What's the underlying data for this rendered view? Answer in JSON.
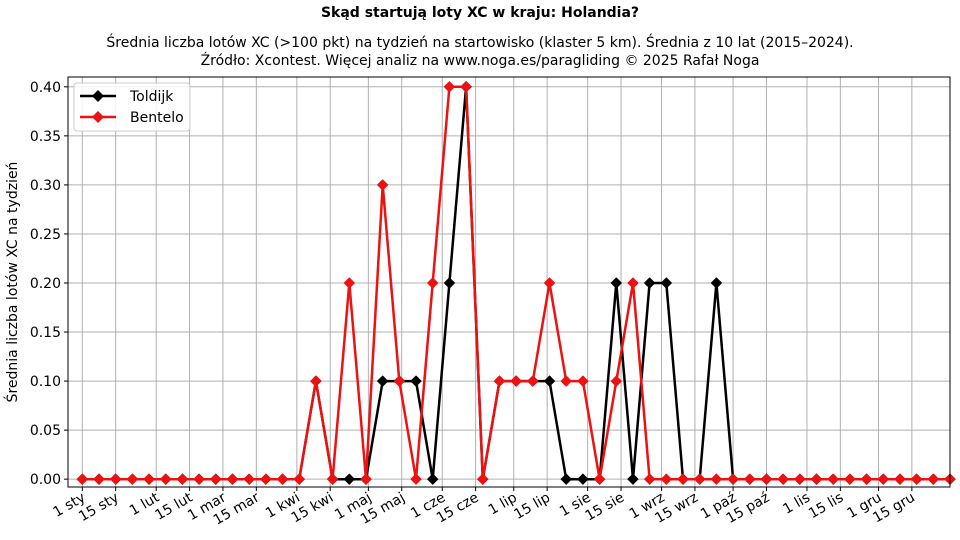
{
  "chart_data": {
    "type": "line",
    "title": "Skąd startują loty XC w kraju: Holandia?",
    "subtitle_lines": [
      "Średnia liczba lotów XC (>100 pkt) na tydzień na startowisko (klaster 5 km). Średnia z 10 lat (2015–2024).",
      "Źródło: Xcontest. Więcej analiz na www.noga.es/paragliding © 2025 Rafał Noga"
    ],
    "ylabel": "Średnia liczba lotów XC na tydzień",
    "xlabel": "",
    "ylim": [
      -0.008,
      0.41
    ],
    "yticks": [
      0.0,
      0.05,
      0.1,
      0.15,
      0.2,
      0.25,
      0.3,
      0.35,
      0.4
    ],
    "ytick_labels": [
      "0.00",
      "0.05",
      "0.10",
      "0.15",
      "0.20",
      "0.25",
      "0.30",
      "0.35",
      "0.40"
    ],
    "xtick_labels": [
      "1 sty",
      "15 sty",
      "1 lut",
      "15 lut",
      "1 mar",
      "15 mar",
      "1 kwi",
      "15 kwi",
      "1 maj",
      "15 maj",
      "1 cze",
      "15 cze",
      "1 lip",
      "15 lip",
      "1 sie",
      "15 sie",
      "1 wrz",
      "15 wrz",
      "1 paź",
      "15 paź",
      "1 lis",
      "15 lis",
      "1 gru",
      "15 gru"
    ],
    "xtick_days": [
      1,
      15,
      32,
      46,
      60,
      74,
      91,
      105,
      121,
      135,
      152,
      166,
      182,
      196,
      213,
      227,
      244,
      258,
      274,
      288,
      305,
      319,
      335,
      349
    ],
    "x_week_start_day": 1,
    "x_week_step_days": 7,
    "grid": true,
    "legend_position": "top-left",
    "series": [
      {
        "name": "Toldijk",
        "color": "#000000",
        "values": [
          0,
          0,
          0,
          0,
          0,
          0,
          0,
          0,
          0,
          0,
          0,
          0,
          0,
          0,
          0.1,
          0,
          0,
          0,
          0.1,
          0.1,
          0.1,
          0,
          0.2,
          0.4,
          0,
          0.1,
          0.1,
          0.1,
          0.1,
          0,
          0,
          0,
          0.2,
          0,
          0.2,
          0.2,
          0,
          0,
          0.2,
          0,
          0,
          0,
          0,
          0,
          0,
          0,
          0,
          0,
          0,
          0,
          0,
          0,
          0
        ]
      },
      {
        "name": "Bentelo",
        "color": "#ee1111",
        "values": [
          0,
          0,
          0,
          0,
          0,
          0,
          0,
          0,
          0,
          0,
          0,
          0,
          0,
          0,
          0.1,
          0,
          0.2,
          0,
          0.3,
          0.1,
          0,
          0.2,
          0.4,
          0.4,
          0,
          0.1,
          0.1,
          0.1,
          0.2,
          0.1,
          0.1,
          0,
          0.1,
          0.2,
          0,
          0,
          0,
          0,
          0,
          0,
          0,
          0,
          0,
          0,
          0,
          0,
          0,
          0,
          0,
          0,
          0,
          0,
          0
        ]
      }
    ]
  }
}
